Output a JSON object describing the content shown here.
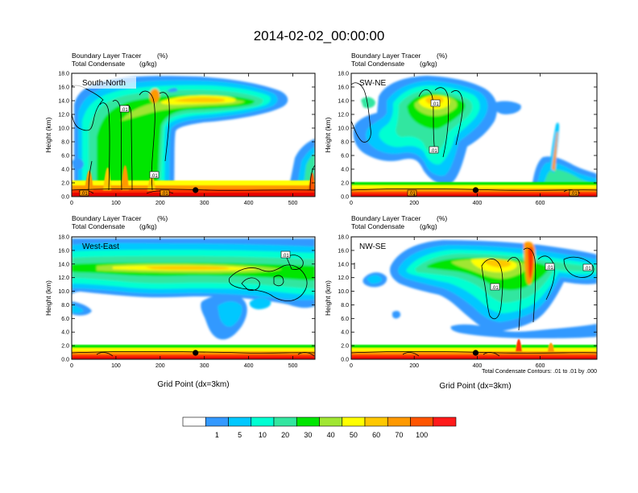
{
  "figure": {
    "title": "2014-02-02_00:00:00",
    "footnote": "Total Condensate Contours: .01 to .01 by .000"
  },
  "colorbar": {
    "levels": [
      "1",
      "5",
      "10",
      "20",
      "30",
      "40",
      "50",
      "60",
      "70",
      "100"
    ],
    "colors": [
      "#ffffff",
      "#3399ff",
      "#00c8ff",
      "#00ffd2",
      "#33e6a0",
      "#00e600",
      "#a0e632",
      "#ffff00",
      "#ffc800",
      "#ff9900",
      "#ff5500",
      "#ff1a1a"
    ]
  },
  "chart_data": [
    {
      "type": "heatmap",
      "label": "South-North",
      "subtitle_left": [
        "Boundary Layer Tracer",
        "Total Condensate"
      ],
      "subtitle_right": [
        "(%)",
        "(g/kg)"
      ],
      "xlabel": "",
      "ylabel": "Height (km)",
      "xlim": [
        0,
        550
      ],
      "ylim": [
        0,
        18
      ],
      "xticks": [
        "0",
        "100",
        "200",
        "300",
        "400",
        "500"
      ],
      "yticks": [
        "0.0",
        "2.0",
        "4.0",
        "6.0",
        "8.0",
        "10.0",
        "12.0",
        "14.0",
        "16.0",
        "18.0"
      ],
      "contour_labels": [
        ".01",
        ".01",
        ".01",
        ".01"
      ],
      "marker_x": 280
    },
    {
      "type": "heatmap",
      "label": "SW-NE",
      "subtitle_left": [
        "Boundary Layer Tracer",
        "Total Condensate"
      ],
      "subtitle_right": [
        "(%)",
        "(g/kg)"
      ],
      "xlabel": "",
      "ylabel": "Height (km)",
      "xlim": [
        0,
        780
      ],
      "ylim": [
        0,
        18
      ],
      "xticks": [
        "0",
        "200",
        "400",
        "600"
      ],
      "yticks": [
        "0.0",
        "2.0",
        "4.0",
        "6.0",
        "8.0",
        "10.0",
        "12.0",
        "14.0",
        "16.0",
        "18.0"
      ],
      "contour_labels": [
        ".01",
        ".01",
        ".01",
        ".01"
      ],
      "marker_x": 395
    },
    {
      "type": "heatmap",
      "label": "West-East",
      "subtitle_left": [
        "Boundary Layer Tracer",
        "Total Condensate"
      ],
      "subtitle_right": [
        "(%)",
        "(g/kg)"
      ],
      "xlabel": "Grid Point (dx=3km)",
      "ylabel": "Height (km)",
      "xlim": [
        0,
        550
      ],
      "ylim": [
        0,
        18
      ],
      "xticks": [
        "0",
        "100",
        "200",
        "300",
        "400",
        "500"
      ],
      "yticks": [
        "0.0",
        "2.0",
        "4.0",
        "6.0",
        "8.0",
        "10.0",
        "12.0",
        "14.0",
        "16.0",
        "18.0"
      ],
      "contour_labels": [
        ".01"
      ],
      "marker_x": 280
    },
    {
      "type": "heatmap",
      "label": "NW-SE",
      "subtitle_left": [
        "Boundary Layer Tracer",
        "Total Condensate"
      ],
      "subtitle_right": [
        "(%)",
        "(g/kg)"
      ],
      "xlabel": "Grid Point (dx=3km)",
      "ylabel": "Height (km)",
      "xlim": [
        0,
        780
      ],
      "ylim": [
        0,
        18
      ],
      "xticks": [
        "0",
        "200",
        "400",
        "600"
      ],
      "yticks": [
        "0.0",
        "2.0",
        "4.0",
        "6.0",
        "8.0",
        "10.0",
        "12.0",
        "14.0",
        "16.0",
        "18.0"
      ],
      "contour_labels": [
        ".01",
        ".01",
        ".01"
      ],
      "marker_x": 395
    }
  ]
}
